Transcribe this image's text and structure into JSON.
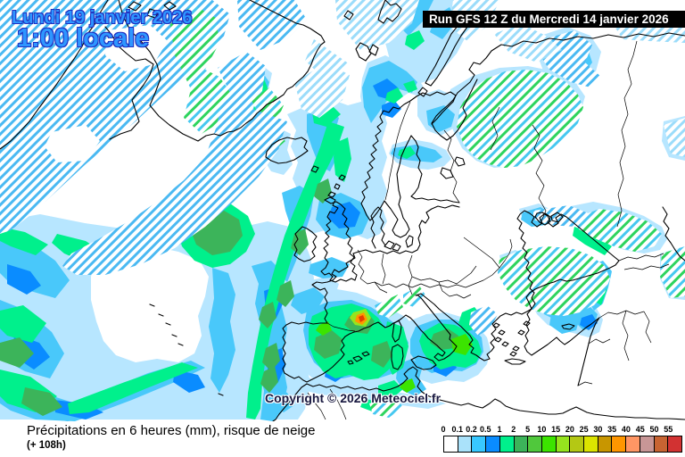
{
  "header": {
    "date_line1": "Lundi 19 janvier 2026",
    "date_line2": "1:00 locale",
    "run_label": "Run GFS 12 Z du Mercredi 14 janvier 2026"
  },
  "map": {
    "copyright": "Copyright © 2026 Meteociel.fr",
    "region": "Europe / Atlantique nord",
    "model": "GFS",
    "colors": {
      "precip_light": "#b7e6ff",
      "precip_cyan": "#49c8fa",
      "precip_blue": "#0a8cff",
      "precip_mint": "#00f08c",
      "precip_green": "#3cb45a",
      "precip_bright_green": "#3ce400",
      "precip_yellow_green": "#96e41e",
      "precip_orange": "#ff9600",
      "snow_hatch_blue": "#4ab9f2",
      "snow_hatch_green": "#2ed45e",
      "accent_text": "#2e96ff"
    }
  },
  "legend": {
    "title": "Précipitations en 6 heures (mm), risque de neige",
    "subtitle": "(+ 108h)",
    "scale_labels": [
      "0",
      "0.1",
      "0.2",
      "0.5",
      "1",
      "2",
      "5",
      "10",
      "15",
      "20",
      "25",
      "30",
      "35",
      "40",
      "45",
      "50",
      "55"
    ],
    "scale_colors": [
      "#ffffff",
      "#aae2fa",
      "#38c8ff",
      "#0a8cff",
      "#00f08c",
      "#3cb45a",
      "#50c83c",
      "#3ce400",
      "#96e41e",
      "#b4c814",
      "#dce400",
      "#c89600",
      "#ff9600",
      "#ff9664",
      "#c89696",
      "#c86432",
      "#d23232"
    ]
  }
}
